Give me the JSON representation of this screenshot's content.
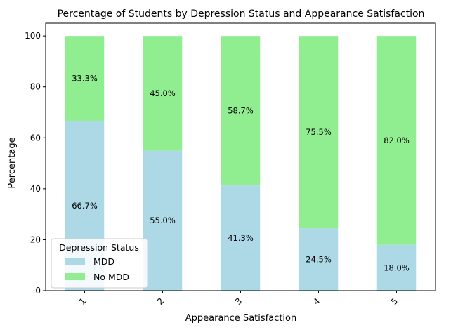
{
  "chart_data": {
    "type": "bar",
    "stacked": true,
    "title": "Percentage of Students by Depression Status and Appearance Satisfaction",
    "xlabel": "Appearance Satisfaction",
    "ylabel": "Percentage",
    "categories": [
      "1",
      "2",
      "3",
      "4",
      "5"
    ],
    "ylim": [
      0,
      105
    ],
    "yticks": [
      "0",
      "20",
      "40",
      "60",
      "80",
      "100"
    ],
    "grid": false,
    "legend": {
      "title": "Depression Status",
      "placement": "lower-left"
    },
    "series": [
      {
        "name": "MDD",
        "color": "#add8e6",
        "values": [
          66.7,
          55.0,
          41.3,
          24.5,
          18.0
        ],
        "labels": [
          "66.7%",
          "55.0%",
          "41.3%",
          "24.5%",
          "18.0%"
        ]
      },
      {
        "name": "No MDD",
        "color": "#90ee90",
        "values": [
          33.3,
          45.0,
          58.7,
          75.5,
          82.0
        ],
        "labels": [
          "33.3%",
          "45.0%",
          "58.7%",
          "75.5%",
          "82.0%"
        ]
      }
    ]
  }
}
